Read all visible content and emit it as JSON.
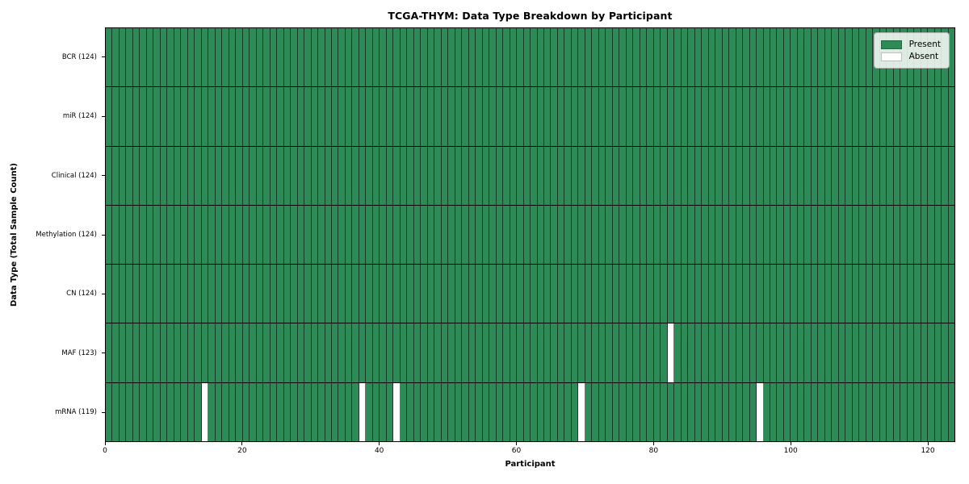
{
  "title": "TCGA-THYM: Data Type Breakdown by Participant",
  "x_axis_label": "Participant",
  "y_axis_label": "Data Type (Total Sample Count)",
  "legend": {
    "items": [
      {
        "label": "Present",
        "color": "#2e8b57"
      },
      {
        "label": "Absent",
        "color": "#ffffff"
      }
    ],
    "position": "upper right"
  },
  "colors": {
    "present": "#2e8b57",
    "absent": "#ffffff",
    "cell_edge": "rgba(0,0,0,0.55)",
    "row_divider": "#000000",
    "spine": "#000000"
  },
  "chart_data": {
    "type": "heatmap",
    "title": "TCGA-THYM: Data Type Breakdown by Participant",
    "xlabel": "Participant",
    "ylabel": "Data Type (Total Sample Count)",
    "xlim": [
      0,
      124
    ],
    "x_ticks": [
      0,
      20,
      40,
      60,
      80,
      100,
      120
    ],
    "n_participants": 124,
    "legend_entries": [
      "Present",
      "Absent"
    ],
    "legend_position": "upper right",
    "rows": [
      {
        "label": "BCR (124)",
        "data_type": "BCR",
        "total_sample_count": 124,
        "absent_participant_indices": []
      },
      {
        "label": "miR (124)",
        "data_type": "miR",
        "total_sample_count": 124,
        "absent_participant_indices": []
      },
      {
        "label": "Clinical (124)",
        "data_type": "Clinical",
        "total_sample_count": 124,
        "absent_participant_indices": []
      },
      {
        "label": "Methylation (124)",
        "data_type": "Methylation",
        "total_sample_count": 124,
        "absent_participant_indices": []
      },
      {
        "label": "CN (124)",
        "data_type": "CN",
        "total_sample_count": 124,
        "absent_participant_indices": []
      },
      {
        "label": "MAF (123)",
        "data_type": "MAF",
        "total_sample_count": 123,
        "absent_participant_indices": [
          82
        ]
      },
      {
        "label": "mRNA (119)",
        "data_type": "mRNA",
        "total_sample_count": 119,
        "absent_participant_indices": [
          14,
          37,
          42,
          69,
          95
        ]
      }
    ]
  }
}
